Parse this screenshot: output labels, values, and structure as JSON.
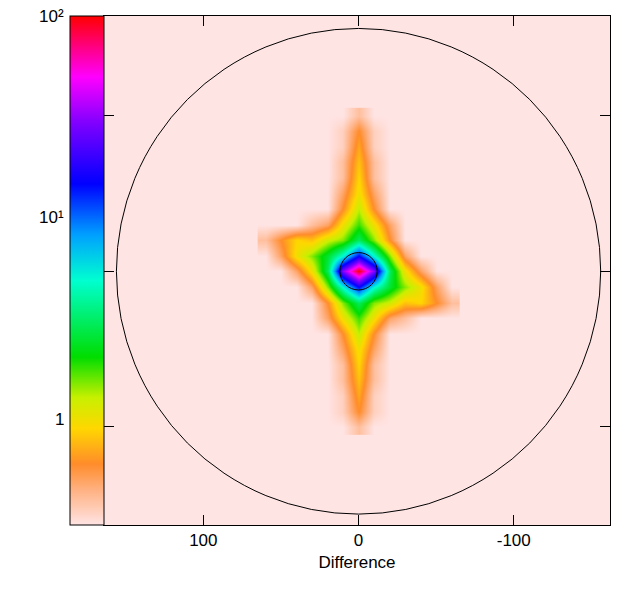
{
  "chart_data": {
    "type": "heatmap",
    "x_label": "Difference",
    "xlim": [
      164,
      -162
    ],
    "xticks": [
      100,
      0,
      -100
    ],
    "ylim": [
      -163,
      164
    ],
    "yticks": [
      -100,
      0,
      100
    ],
    "tick_labels": "x",
    "cells": {
      "x": [
        -60,
        -50,
        -40,
        -30,
        -20,
        -10,
        0,
        10,
        20,
        30,
        40,
        50,
        60
      ],
      "y": [
        -100,
        -90,
        -80,
        -70,
        -60,
        -50,
        -40,
        -30,
        -20,
        -10,
        0,
        10,
        20,
        30,
        40,
        50,
        60,
        70,
        80,
        90,
        100
      ],
      "values": [
        [
          0.3,
          0.3,
          0.3,
          0.3,
          0.3,
          0.3,
          0.4,
          0.3,
          0.3,
          0.3,
          0.3,
          0.3,
          0.3
        ],
        [
          0.3,
          0.3,
          0.3,
          0.3,
          0.3,
          0.35,
          0.6,
          0.35,
          0.3,
          0.3,
          0.3,
          0.3,
          0.3
        ],
        [
          0.3,
          0.3,
          0.3,
          0.3,
          0.3,
          0.35,
          0.7,
          0.35,
          0.3,
          0.3,
          0.3,
          0.3,
          0.3
        ],
        [
          0.3,
          0.3,
          0.3,
          0.3,
          0.3,
          0.4,
          0.8,
          0.4,
          0.3,
          0.3,
          0.3,
          0.3,
          0.3
        ],
        [
          0.3,
          0.3,
          0.3,
          0.3,
          0.3,
          0.4,
          0.9,
          0.4,
          0.3,
          0.3,
          0.3,
          0.3,
          0.3
        ],
        [
          0.3,
          0.3,
          0.3,
          0.3,
          0.3,
          0.5,
          1,
          0.5,
          0.3,
          0.3,
          0.3,
          0.3,
          0.3
        ],
        [
          0.3,
          0.3,
          0.3,
          0.3,
          0.3,
          0.6,
          1.3,
          0.6,
          0.3,
          0.3,
          0.3,
          0.3,
          0.3
        ],
        [
          0.3,
          0.3,
          0.3,
          0.4,
          0.5,
          1,
          1.8,
          1,
          0.5,
          0.3,
          0.3,
          0.3,
          0.3
        ],
        [
          0.4,
          0.6,
          0.9,
          0.8,
          1.2,
          1.5,
          3,
          1.5,
          0.6,
          0.3,
          0.3,
          0.3,
          0.3
        ],
        [
          0.3,
          0.5,
          1,
          1.5,
          2.5,
          5,
          15,
          5,
          1.5,
          0.5,
          0.3,
          0.3,
          0.3
        ],
        [
          0.3,
          0.3,
          0.5,
          1,
          3,
          30,
          100,
          30,
          3,
          1,
          0.5,
          0.3,
          0.3
        ],
        [
          0.3,
          0.3,
          0.3,
          0.5,
          1.5,
          5,
          15,
          5,
          2.5,
          1.5,
          1,
          0.5,
          0.3
        ],
        [
          0.3,
          0.3,
          0.3,
          0.3,
          0.6,
          1.5,
          3,
          1.5,
          1.2,
          0.8,
          0.9,
          0.6,
          0.4
        ],
        [
          0.3,
          0.3,
          0.3,
          0.3,
          0.5,
          1,
          1.8,
          1,
          0.5,
          0.4,
          0.3,
          0.3,
          0.3
        ],
        [
          0.3,
          0.3,
          0.3,
          0.3,
          0.3,
          0.6,
          1.3,
          0.6,
          0.3,
          0.3,
          0.3,
          0.3,
          0.3
        ],
        [
          0.3,
          0.3,
          0.3,
          0.3,
          0.3,
          0.5,
          1,
          0.5,
          0.3,
          0.3,
          0.3,
          0.3,
          0.3
        ],
        [
          0.3,
          0.3,
          0.3,
          0.3,
          0.3,
          0.4,
          0.9,
          0.4,
          0.3,
          0.3,
          0.3,
          0.3,
          0.3
        ],
        [
          0.3,
          0.3,
          0.3,
          0.3,
          0.3,
          0.4,
          0.8,
          0.4,
          0.3,
          0.3,
          0.3,
          0.3,
          0.3
        ],
        [
          0.3,
          0.3,
          0.3,
          0.3,
          0.3,
          0.35,
          0.7,
          0.35,
          0.3,
          0.3,
          0.3,
          0.3,
          0.3
        ],
        [
          0.3,
          0.3,
          0.3,
          0.3,
          0.3,
          0.35,
          0.6,
          0.35,
          0.3,
          0.3,
          0.3,
          0.3,
          0.3
        ],
        [
          0.3,
          0.3,
          0.3,
          0.3,
          0.3,
          0.3,
          0.4,
          0.3,
          0.3,
          0.3,
          0.3,
          0.3,
          0.3
        ]
      ]
    },
    "colorbar_range": [
      0.3,
      100
    ],
    "colorbar_ticks": [
      1,
      {
        "value": 10,
        "label": "10¹"
      },
      {
        "value": 100,
        "label": "10²"
      }
    ],
    "circles": [
      {
        "x": 0,
        "y": 0,
        "r": 156
      },
      {
        "x": 0,
        "y": 0,
        "r": 12
      }
    ]
  }
}
